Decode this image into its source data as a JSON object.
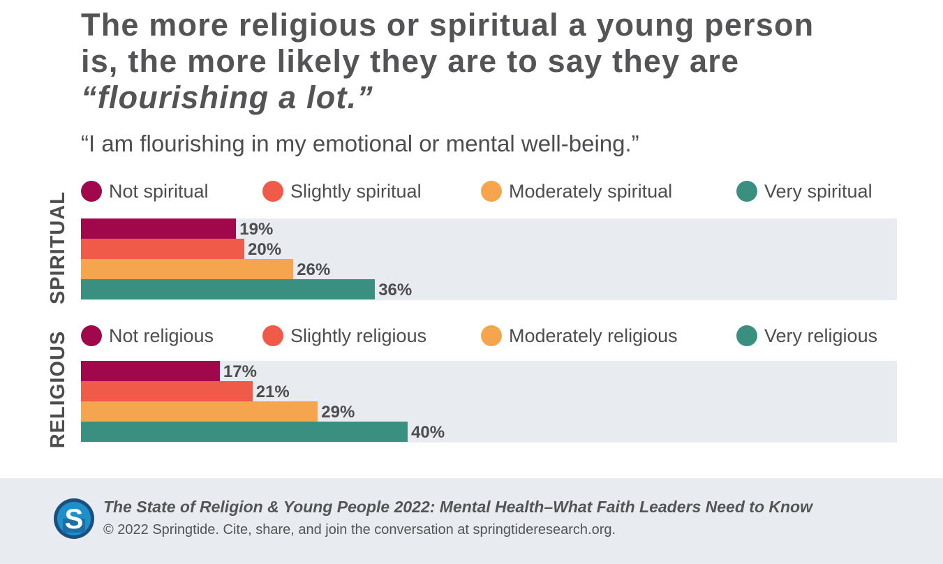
{
  "title": {
    "line1": "The more religious or spiritual a young person",
    "line2": "is, the more likely they are to say they are",
    "line3": "“flourishing a lot.”"
  },
  "subtitle": "“I am flourishing in my emotional or mental well-being.”",
  "colors": [
    "#a1084b",
    "#f05a48",
    "#f6a54f",
    "#3a9080"
  ],
  "chart_data": [
    {
      "type": "bar",
      "orientation": "horizontal",
      "group_label": "SPIRITUAL",
      "categories": [
        "Not spiritual",
        "Slightly spiritual",
        "Moderately spiritual",
        "Very spiritual"
      ],
      "values": [
        19,
        20,
        26,
        36
      ],
      "value_labels": [
        "19%",
        "20%",
        "26%",
        "36%"
      ],
      "xlim": [
        0,
        100
      ],
      "legend": "top"
    },
    {
      "type": "bar",
      "orientation": "horizontal",
      "group_label": "RELIGIOUS",
      "categories": [
        "Not religious",
        "Slightly religious",
        "Moderately religious",
        "Very religious"
      ],
      "values": [
        17,
        21,
        29,
        40
      ],
      "value_labels": [
        "17%",
        "21%",
        "29%",
        "40%"
      ],
      "xlim": [
        0,
        100
      ],
      "legend": "top"
    }
  ],
  "footer": {
    "logo_icon": "springtide-s-logo",
    "logo_letter": "S",
    "title": "The State of Religion & Young People 2022: Mental Health–What Faith Leaders Need to Know",
    "copyright": "© 2022 Springtide. Cite, share, and join the conversation at springtideresearch.org."
  }
}
